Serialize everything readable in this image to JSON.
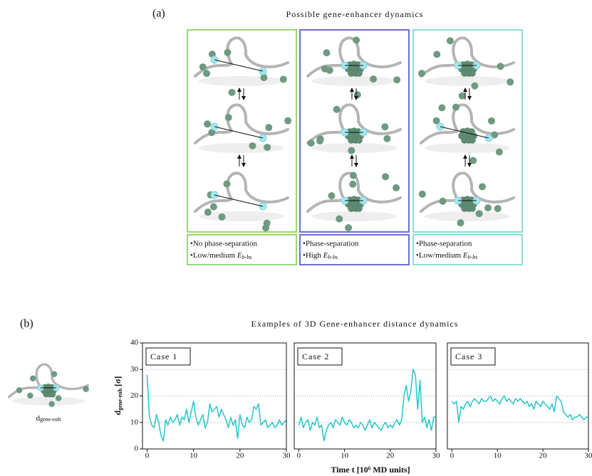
{
  "panel_a": {
    "label": "(a)",
    "title": "Possible gene-enhancer dynamics",
    "captions": [
      {
        "line1": "•No phase-separation",
        "line2": "•Low/medium ",
        "symbol": "E",
        "subscript": "b-bs"
      },
      {
        "line1": "•Phase-separation",
        "line2": "•High ",
        "symbol": "E",
        "subscript": "b-bs"
      },
      {
        "line1": "•Phase-separation",
        "line2": "•Low/medium ",
        "symbol": "E",
        "subscript": "b-bs"
      }
    ]
  },
  "panel_b": {
    "label": "(b)",
    "title": "Examples of 3D Gene-enhancer distance dynamics",
    "illustration_label": {
      "symbol": "d",
      "subscript": "gene-enh"
    },
    "y_label": {
      "symbol": "d",
      "subscript": "gene-enh",
      "unit": " [σ]"
    },
    "x_label": "Time t [10⁶ MD units]"
  },
  "chart_data": [
    {
      "type": "line",
      "title": "Case 1",
      "color": "#25c6c9",
      "x": [
        0,
        0.5,
        1,
        1.5,
        2,
        2.5,
        3,
        3.5,
        4,
        4.5,
        5,
        5.5,
        6,
        6.5,
        7,
        7.5,
        8,
        8.5,
        9,
        9.5,
        10,
        10.5,
        11,
        11.5,
        12,
        12.5,
        13,
        13.5,
        14,
        14.5,
        15,
        15.5,
        16,
        16.5,
        17,
        17.5,
        18,
        18.5,
        19,
        19.5,
        20,
        20.5,
        21,
        21.5,
        22,
        22.5,
        23,
        23.5,
        24,
        24.5,
        25,
        25.5,
        26,
        26.5,
        27,
        27.5,
        28,
        28.5,
        29,
        29.5,
        30
      ],
      "values": [
        28,
        12,
        9,
        8,
        13,
        10,
        5,
        3,
        11,
        9,
        12,
        10,
        11,
        13,
        9,
        12,
        11,
        15,
        10,
        14,
        18,
        12,
        9,
        11,
        13,
        8,
        10,
        17,
        14,
        15,
        16,
        12,
        15,
        13,
        11,
        8,
        12,
        9,
        11,
        4,
        13,
        9,
        8,
        12,
        10,
        11,
        16,
        15,
        17,
        9,
        10,
        11,
        8,
        9,
        10,
        8,
        9,
        11,
        9,
        10,
        11
      ],
      "xlim": [
        -1,
        30
      ],
      "ylim": [
        0,
        40
      ],
      "xticks": [
        0,
        10,
        20,
        30
      ],
      "yticks": [
        0,
        10,
        20,
        30,
        40
      ],
      "grid": true
    },
    {
      "type": "line",
      "title": "Case 2",
      "color": "#25c6c9",
      "x": [
        0,
        0.5,
        1,
        1.5,
        2,
        2.5,
        3,
        3.5,
        4,
        4.5,
        5,
        5.5,
        6,
        6.5,
        7,
        7.5,
        8,
        8.5,
        9,
        9.5,
        10,
        10.5,
        11,
        11.5,
        12,
        12.5,
        13,
        13.5,
        14,
        14.5,
        15,
        15.5,
        16,
        16.5,
        17,
        17.5,
        18,
        18.5,
        19,
        19.5,
        20,
        20.5,
        21,
        21.5,
        22,
        22.5,
        23,
        23.5,
        24,
        24.5,
        25,
        25.5,
        26,
        26.5,
        27,
        27.5,
        28,
        28.5,
        29,
        29.5,
        30
      ],
      "values": [
        9,
        12,
        8,
        10,
        11,
        7,
        10,
        9,
        12,
        8,
        9,
        3,
        7,
        9,
        10,
        8,
        11,
        10,
        9,
        12,
        10,
        9,
        11,
        10,
        8,
        9,
        8,
        10,
        9,
        7,
        9,
        11,
        8,
        10,
        9,
        8,
        7,
        9,
        10,
        8,
        9,
        8,
        10,
        11,
        9,
        11,
        20,
        24,
        18,
        22,
        30,
        28,
        15,
        26,
        10,
        12,
        8,
        11,
        7,
        12,
        12
      ],
      "xlim": [
        -1,
        30
      ],
      "ylim": [
        0,
        40
      ],
      "xticks": [
        0,
        10,
        20,
        30
      ],
      "yticks": [
        0,
        10,
        20,
        30,
        40
      ],
      "ytick_labels": false,
      "grid": true
    },
    {
      "type": "line",
      "title": "Case 3",
      "color": "#25c6c9",
      "x": [
        0,
        0.5,
        1,
        1.5,
        2,
        2.5,
        3,
        3.5,
        4,
        4.5,
        5,
        5.5,
        6,
        6.5,
        7,
        7.5,
        8,
        8.5,
        9,
        9.5,
        10,
        10.5,
        11,
        11.5,
        12,
        12.5,
        13,
        13.5,
        14,
        14.5,
        15,
        15.5,
        16,
        16.5,
        17,
        17.5,
        18,
        18.5,
        19,
        19.5,
        20,
        20.5,
        21,
        21.5,
        22,
        22.5,
        23,
        23.5,
        24,
        24.5,
        25,
        25.5,
        26,
        26.5,
        27,
        27.5,
        28,
        28.5,
        29,
        29.5,
        30
      ],
      "values": [
        18,
        17,
        18,
        10,
        16,
        15,
        17,
        18,
        16,
        18,
        19,
        18,
        17,
        19,
        18,
        18,
        19,
        20,
        18,
        19,
        18,
        17,
        19,
        20,
        18,
        19,
        18,
        17,
        19,
        18,
        19,
        18,
        17,
        18,
        16,
        17,
        15,
        18,
        17,
        16,
        18,
        17,
        16,
        15,
        17,
        14,
        20,
        19,
        18,
        14,
        13,
        12,
        13,
        11,
        12,
        12,
        13,
        12,
        11,
        12,
        12
      ],
      "xlim": [
        -1,
        30
      ],
      "ylim": [
        0,
        40
      ],
      "xticks": [
        0,
        10,
        20,
        30
      ],
      "yticks": [
        0,
        10,
        20,
        30,
        40
      ],
      "ytick_labels": false,
      "grid": true
    }
  ]
}
